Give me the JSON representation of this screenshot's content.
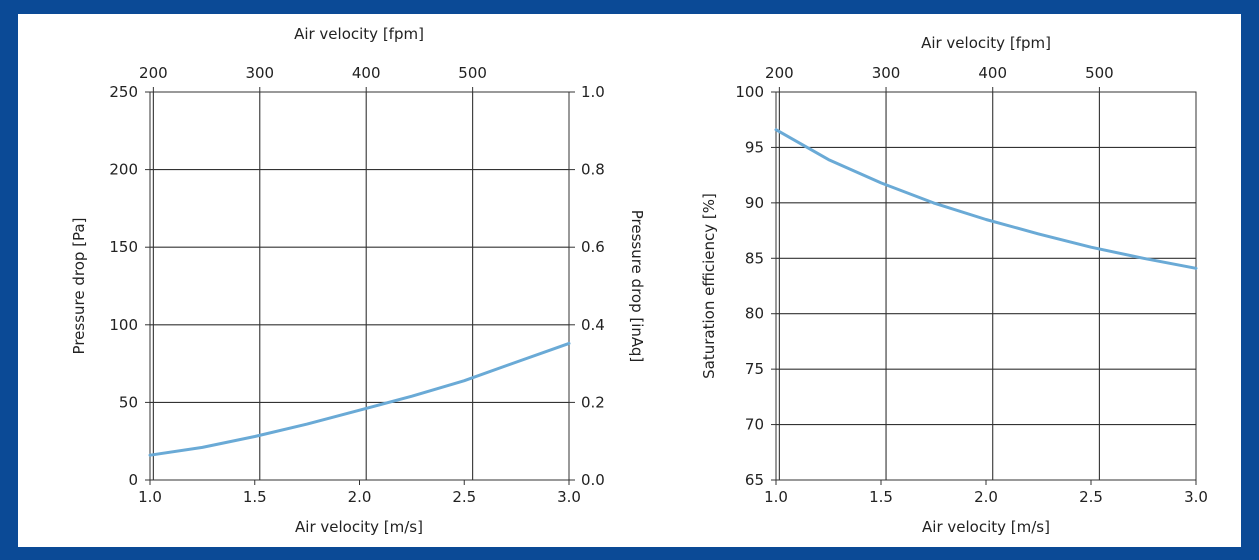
{
  "theme": {
    "frame_color": "#0b4a96",
    "panel_color": "#ffffff",
    "curve_color": "#6aaad6",
    "grid_color": "#333333"
  },
  "chart_data": [
    {
      "type": "line",
      "xlabel": "Air velocity [m/s]",
      "x2label": "Air velocity [fpm]",
      "ylabel": "Pressure drop [Pa]",
      "y2label": "Pressure drop [inAq]",
      "xlim": [
        1.0,
        3.0
      ],
      "ylim": [
        0,
        250
      ],
      "y2lim": [
        0.0,
        1.0
      ],
      "x_ticks": [
        "1.0",
        "1.5",
        "2.0",
        "2.5",
        "3.0"
      ],
      "x_ticks_values": [
        1.0,
        1.5,
        2.0,
        2.5,
        3.0
      ],
      "x2_ticks": [
        "200",
        "300",
        "400",
        "500"
      ],
      "x2_ticks_values_fpm": [
        200,
        300,
        400,
        500
      ],
      "y_ticks": [
        "0",
        "50",
        "100",
        "150",
        "200",
        "250"
      ],
      "y_ticks_values": [
        0,
        50,
        100,
        150,
        200,
        250
      ],
      "y2_ticks": [
        "0.0",
        "0.2",
        "0.4",
        "0.6",
        "0.8",
        "1.0"
      ],
      "y2_ticks_values": [
        0.0,
        0.2,
        0.4,
        0.6,
        0.8,
        1.0
      ],
      "grid": true,
      "series": [
        {
          "x": [
            1.0,
            1.25,
            1.5,
            1.75,
            2.0,
            2.25,
            2.5,
            2.75,
            3.0
          ],
          "y": [
            16,
            21,
            28,
            36,
            45,
            54,
            64,
            76,
            88
          ]
        }
      ]
    },
    {
      "type": "line",
      "xlabel": "Air velocity [m/s]",
      "x2label": "Air velocity [fpm]",
      "ylabel": "Saturation efficiency [%]",
      "xlim": [
        1.0,
        3.0
      ],
      "ylim": [
        65,
        100
      ],
      "x_ticks": [
        "1.0",
        "1.5",
        "2.0",
        "2.5",
        "3.0"
      ],
      "x_ticks_values": [
        1.0,
        1.5,
        2.0,
        2.5,
        3.0
      ],
      "x2_ticks": [
        "200",
        "300",
        "400",
        "500"
      ],
      "x2_ticks_values_fpm": [
        200,
        300,
        400,
        500
      ],
      "y_ticks": [
        "65",
        "70",
        "75",
        "80",
        "85",
        "90",
        "95",
        "100"
      ],
      "y_ticks_values": [
        65,
        70,
        75,
        80,
        85,
        90,
        95,
        100
      ],
      "grid": true,
      "series": [
        {
          "x": [
            1.0,
            1.25,
            1.5,
            1.75,
            2.0,
            2.25,
            2.5,
            2.75,
            3.0
          ],
          "y": [
            96.6,
            93.9,
            91.8,
            90.0,
            88.5,
            87.2,
            86.0,
            85.0,
            84.1
          ]
        }
      ]
    }
  ]
}
